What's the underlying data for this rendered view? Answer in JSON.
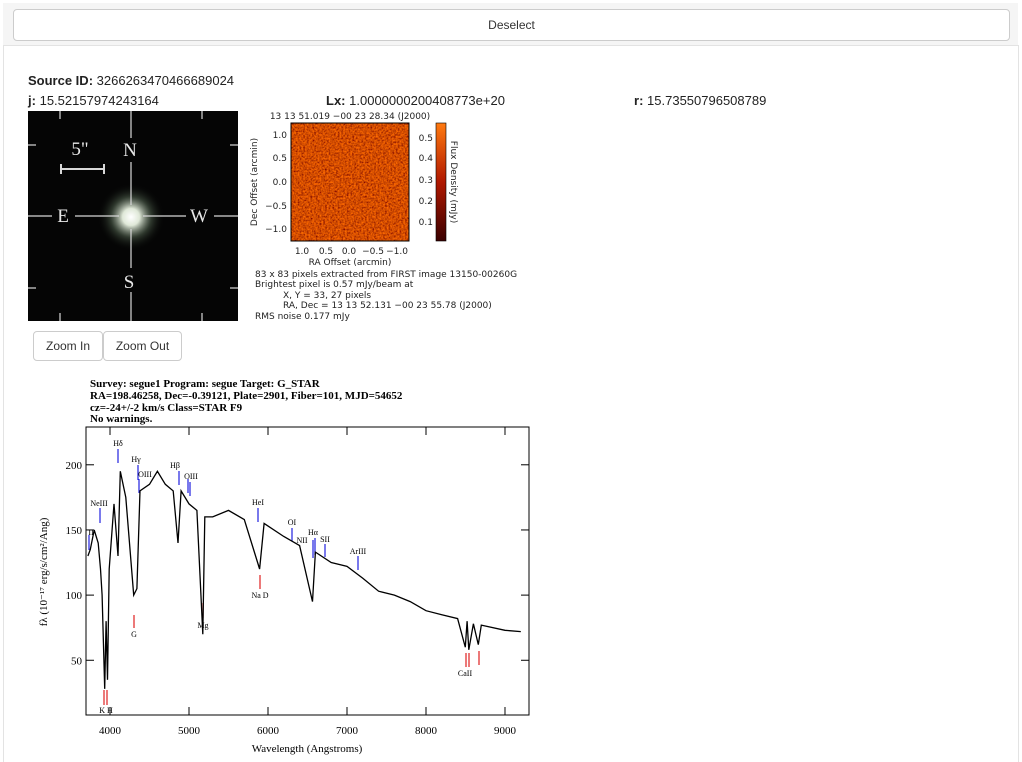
{
  "toolbar": {
    "deselect": "Deselect"
  },
  "fields": {
    "source_id": {
      "label": "Source ID",
      "value": "3266263470466689024"
    },
    "j": {
      "label": "j",
      "value": "15.52157974243164"
    },
    "lx": {
      "label": "Lx",
      "value": "1.0000000200408773e+20"
    },
    "r": {
      "label": "r",
      "value": "15.73550796508789"
    }
  },
  "star_image": {
    "scale": "5\"",
    "north": "N",
    "east": "E",
    "west": "W",
    "south": "S"
  },
  "radio_image": {
    "header": "13 13 51.019 −00 23 28.34 (J2000)",
    "y_ticks": [
      "1.0",
      "0.5",
      "0.0",
      "−0.5",
      "−1.0"
    ],
    "x_ticks": [
      "1.0",
      "0.5",
      "0.0",
      "−0.5",
      "−1.0"
    ],
    "y_label": "Dec Offset (arcmin)",
    "x_label": "RA Offset (arcmin)",
    "colorbar_ticks": [
      "0.5",
      "0.4",
      "0.3",
      "0.2",
      "0.1"
    ],
    "colorbar_label": "Flux Density (mJy)",
    "info": [
      "83 x 83 pixels extracted from FIRST image 13150-00260G",
      "Brightest pixel is 0.57 mJy/beam at",
      "X, Y      = 33, 27 pixels",
      "RA, Dec = 13 13 52.131 −00 23 55.78 (J2000)",
      "RMS noise 0.177 mJy"
    ]
  },
  "zoom": {
    "in": "Zoom In",
    "out": "Zoom Out"
  },
  "spectrum": {
    "header": [
      "Survey: segue1 Program: segue Target: G_STAR",
      "RA=198.46258, Dec=-0.39121, Plate=2901, Fiber=101, MJD=54652",
      "cz=-24+/-2 km/s Class=STAR F9",
      "No warnings."
    ],
    "x_label": "Wavelength (Angstroms)",
    "y_label": "fλ (10⁻¹⁷ erg/s/cm²/Ang)",
    "xlim": [
      3696,
      9304
    ],
    "ylim": [
      8,
      229
    ],
    "xticks": [
      4000,
      5000,
      6000,
      7000,
      8000,
      9000
    ],
    "yticks": [
      50,
      100,
      150,
      200
    ],
    "wavelength": [
      3720,
      3750,
      3800,
      3850,
      3880,
      3900,
      3933,
      3950,
      3968,
      3990,
      4050,
      4101,
      4130,
      4200,
      4300,
      4340,
      4380,
      4500,
      4600,
      4700,
      4800,
      4861,
      4900,
      5000,
      5100,
      5175,
      5200,
      5300,
      5500,
      5700,
      5893,
      5950,
      6200,
      6400,
      6563,
      6600,
      6800,
      7000,
      7200,
      7400,
      7600,
      7800,
      8000,
      8200,
      8400,
      8498,
      8520,
      8542,
      8600,
      8662,
      8700,
      9000,
      9200
    ],
    "flux": [
      130,
      135,
      150,
      140,
      120,
      100,
      28,
      80,
      35,
      120,
      170,
      130,
      195,
      175,
      100,
      105,
      180,
      185,
      195,
      185,
      180,
      140,
      180,
      170,
      165,
      70,
      160,
      160,
      165,
      158,
      120,
      155,
      145,
      138,
      95,
      133,
      125,
      122,
      113,
      103,
      100,
      95,
      88,
      85,
      82,
      60,
      80,
      58,
      78,
      62,
      77,
      73,
      72
    ],
    "lines": [
      "II",
      "NeIII",
      "Hδ",
      "Hγ",
      "OIII",
      "Hβ",
      "OIII",
      "HeI",
      "OI",
      "NII",
      "Hα",
      "SII",
      "ArIII",
      "Na D",
      "Mg",
      "G",
      "K H",
      "CaII"
    ]
  }
}
